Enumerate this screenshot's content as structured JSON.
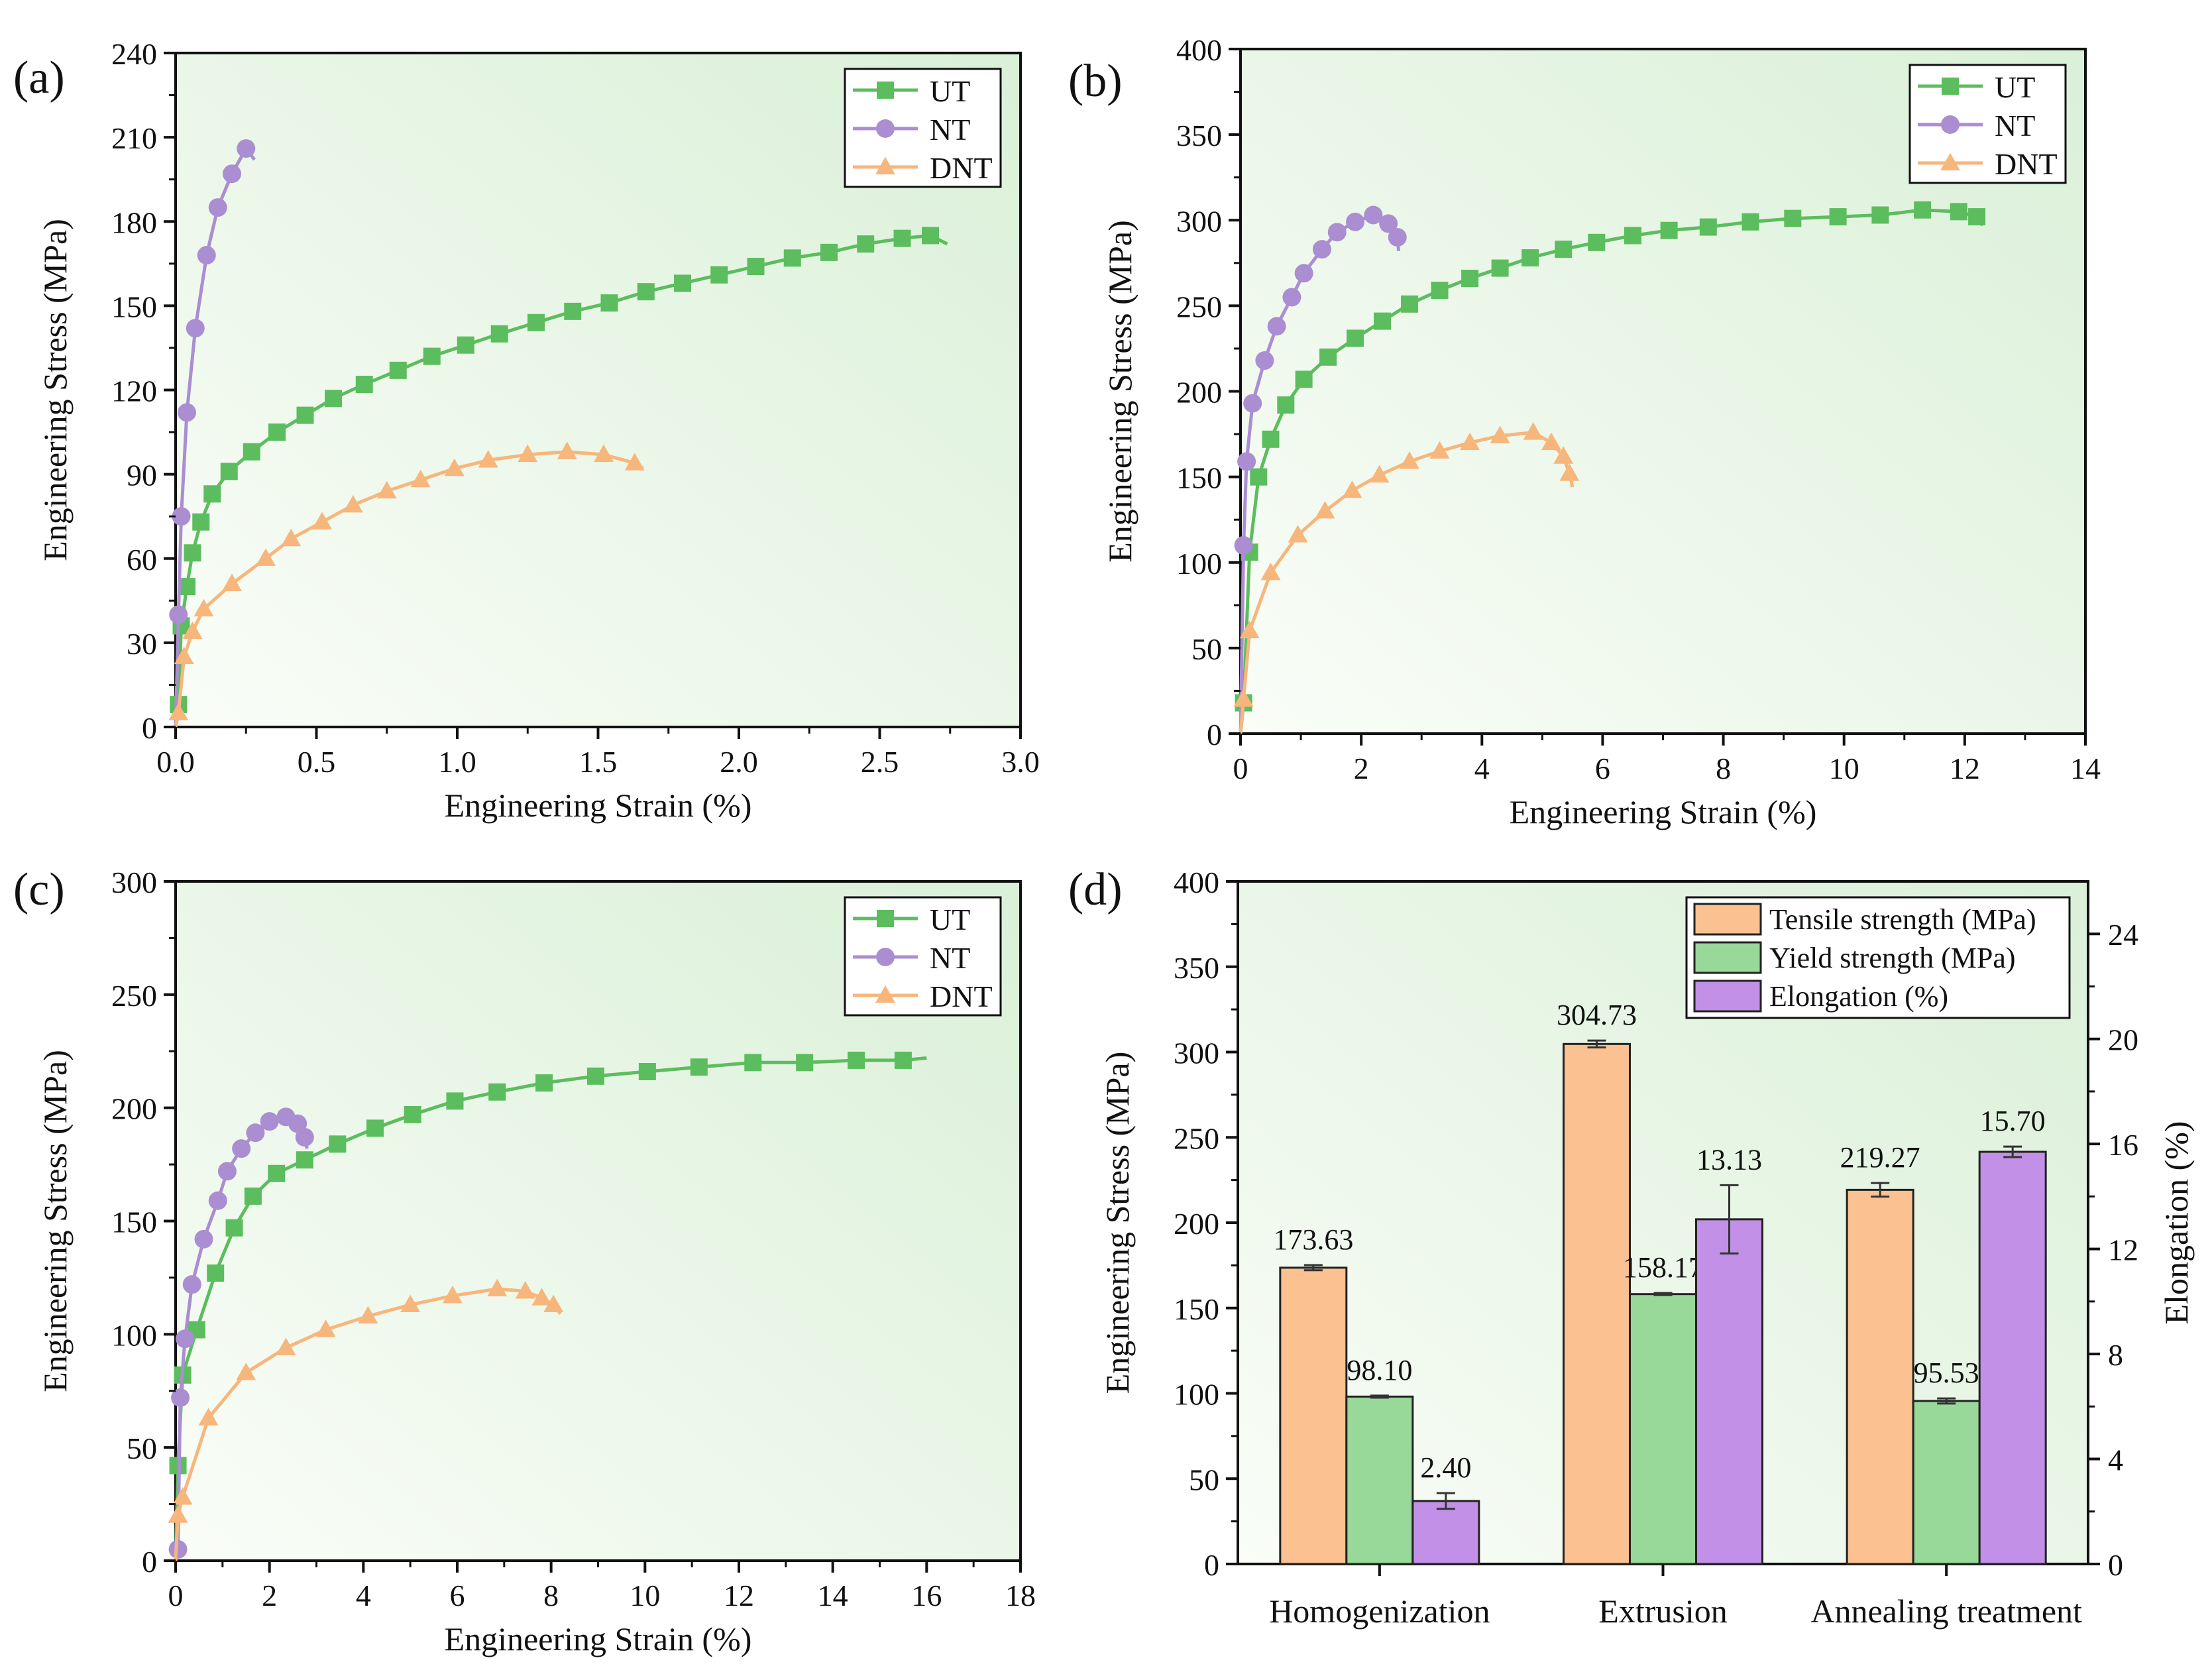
{
  "colors": {
    "UT": "#5cbd5e",
    "NT": "#aa8ed1",
    "DNT": "#f7b67b",
    "tensile": "#fbc190",
    "yield": "#98d898",
    "elongation": "#c290e6",
    "bg_light": "#fafdf8",
    "bg_dark": "#daf0d8"
  },
  "chart_data": [
    {
      "panel_label": "(a)",
      "type": "line",
      "xlabel": "Engineering Strain (%)",
      "ylabel": "Engineering Stress (MPa)",
      "xlim": [
        0,
        3.0
      ],
      "ylim": [
        0,
        240
      ],
      "xticks": [
        "0.0",
        "0.5",
        "1.0",
        "1.5",
        "2.0",
        "2.5",
        "3.0"
      ],
      "yticks": [
        "0",
        "30",
        "60",
        "90",
        "120",
        "150",
        "180",
        "210",
        "240"
      ],
      "legend": "top-right",
      "series": [
        {
          "name": "UT",
          "marker": "square",
          "x": [
            0,
            0.01,
            0.02,
            0.04,
            0.06,
            0.09,
            0.13,
            0.19,
            0.27,
            0.36,
            0.46,
            0.56,
            0.67,
            0.79,
            0.91,
            1.03,
            1.15,
            1.28,
            1.41,
            1.54,
            1.67,
            1.8,
            1.93,
            2.06,
            2.19,
            2.32,
            2.45,
            2.58,
            2.68,
            2.74
          ],
          "y": [
            0,
            8,
            36,
            50,
            62,
            73,
            83,
            91,
            98,
            105,
            111,
            117,
            122,
            127,
            132,
            136,
            140,
            144,
            148,
            151,
            155,
            158,
            161,
            164,
            167,
            169,
            172,
            174,
            175,
            172
          ]
        },
        {
          "name": "NT",
          "marker": "circle",
          "x": [
            0,
            0.01,
            0.02,
            0.04,
            0.07,
            0.11,
            0.15,
            0.2,
            0.25,
            0.28
          ],
          "y": [
            0,
            40,
            75,
            112,
            142,
            168,
            185,
            197,
            206,
            202
          ]
        },
        {
          "name": "DNT",
          "marker": "triangle",
          "x": [
            0,
            0.01,
            0.03,
            0.06,
            0.1,
            0.2,
            0.32,
            0.41,
            0.52,
            0.63,
            0.75,
            0.87,
            0.99,
            1.11,
            1.25,
            1.39,
            1.52,
            1.63,
            1.66
          ],
          "y": [
            0,
            5,
            25,
            34,
            42,
            51,
            60,
            67,
            73,
            79,
            84,
            88,
            92,
            95,
            97,
            98,
            97,
            94,
            92
          ]
        }
      ]
    },
    {
      "panel_label": "(b)",
      "type": "line",
      "xlabel": "Engineering Strain (%)",
      "ylabel": "Engineering Stress (MPa)",
      "xlim": [
        0,
        14
      ],
      "ylim": [
        0,
        400
      ],
      "xticks": [
        "0",
        "2",
        "4",
        "6",
        "8",
        "10",
        "12",
        "14"
      ],
      "yticks": [
        "0",
        "50",
        "100",
        "150",
        "200",
        "250",
        "300",
        "350",
        "400"
      ],
      "legend": "top-right",
      "series": [
        {
          "name": "UT",
          "marker": "square",
          "x": [
            0,
            0.05,
            0.15,
            0.3,
            0.5,
            0.75,
            1.05,
            1.45,
            1.9,
            2.35,
            2.8,
            3.3,
            3.8,
            4.3,
            4.8,
            5.35,
            5.9,
            6.5,
            7.1,
            7.75,
            8.45,
            9.15,
            9.9,
            10.6,
            11.3,
            11.9,
            12.2,
            12.3
          ],
          "y": [
            0,
            18,
            106,
            150,
            172,
            192,
            207,
            220,
            231,
            241,
            251,
            259,
            266,
            272,
            278,
            283,
            287,
            291,
            294,
            296,
            299,
            301,
            302,
            303,
            306,
            305,
            302,
            297
          ]
        },
        {
          "name": "NT",
          "marker": "circle",
          "x": [
            0,
            0.05,
            0.1,
            0.2,
            0.4,
            0.6,
            0.85,
            1.05,
            1.35,
            1.6,
            1.9,
            2.2,
            2.45,
            2.6,
            2.62
          ],
          "y": [
            0,
            110,
            159,
            193,
            218,
            238,
            255,
            269,
            283,
            293,
            299,
            303,
            298,
            290,
            282
          ]
        },
        {
          "name": "DNT",
          "marker": "triangle",
          "x": [
            0,
            0.05,
            0.15,
            0.5,
            0.95,
            1.4,
            1.85,
            2.3,
            2.8,
            3.3,
            3.8,
            4.3,
            4.85,
            5.15,
            5.35,
            5.45,
            5.5
          ],
          "y": [
            0,
            20,
            60,
            94,
            116,
            130,
            142,
            151,
            159,
            165,
            170,
            174,
            176,
            170,
            162,
            152,
            144
          ]
        }
      ]
    },
    {
      "panel_label": "(c)",
      "type": "line",
      "xlabel": "Engineering Strain (%)",
      "ylabel": "Engineering Stress (MPa)",
      "xlim": [
        0,
        18
      ],
      "ylim": [
        0,
        300
      ],
      "xticks": [
        "0",
        "2",
        "4",
        "6",
        "8",
        "10",
        "12",
        "14",
        "16",
        "18"
      ],
      "yticks": [
        "0",
        "50",
        "100",
        "150",
        "200",
        "250",
        "300"
      ],
      "legend": "top-right",
      "series": [
        {
          "name": "UT",
          "marker": "square",
          "x": [
            0,
            0.05,
            0.15,
            0.45,
            0.85,
            1.25,
            1.65,
            2.15,
            2.75,
            3.45,
            4.25,
            5.05,
            5.95,
            6.85,
            7.85,
            8.95,
            10.05,
            11.15,
            12.3,
            13.4,
            14.5,
            15.5,
            16.0
          ],
          "y": [
            0,
            42,
            82,
            102,
            127,
            147,
            161,
            171,
            177,
            184,
            191,
            197,
            203,
            207,
            211,
            214,
            216,
            218,
            220,
            220,
            221,
            221,
            222
          ]
        },
        {
          "name": "NT",
          "marker": "circle",
          "x": [
            0,
            0.05,
            0.1,
            0.2,
            0.35,
            0.6,
            0.9,
            1.1,
            1.4,
            1.7,
            2.0,
            2.35,
            2.6,
            2.75,
            2.8
          ],
          "y": [
            0,
            5,
            72,
            98,
            122,
            142,
            159,
            172,
            182,
            189,
            194,
            196,
            193,
            187,
            182
          ]
        },
        {
          "name": "DNT",
          "marker": "triangle",
          "x": [
            0,
            0.05,
            0.15,
            0.7,
            1.5,
            2.35,
            3.2,
            4.1,
            5.0,
            5.9,
            6.85,
            7.45,
            7.8,
            8.05,
            8.2
          ],
          "y": [
            0,
            20,
            28,
            63,
            83,
            94,
            102,
            108,
            113,
            117,
            120,
            119,
            116,
            113,
            109
          ]
        }
      ]
    },
    {
      "panel_label": "(d)",
      "type": "bar",
      "categories": [
        "Homogenization",
        "Extrusion",
        "Annealing treatment"
      ],
      "ylabel": "Engineering Stress (MPa)",
      "ylabel_right": "Elongation (%)",
      "ylim": [
        0,
        400
      ],
      "ylim_right": [
        0,
        26
      ],
      "yticks": [
        "0",
        "50",
        "100",
        "150",
        "200",
        "250",
        "300",
        "350",
        "400"
      ],
      "yticks_right": [
        "0",
        "4",
        "8",
        "12",
        "16",
        "20",
        "24"
      ],
      "legend": "top-right",
      "series": [
        {
          "name": "Tensile strength (MPa)",
          "axis": "left",
          "values": [
            173.63,
            304.73,
            219.27
          ],
          "errors": [
            1.5,
            2.0,
            4.0
          ],
          "labels": [
            "173.63",
            "304.73",
            "219.27"
          ]
        },
        {
          "name": "Yield strength (MPa)",
          "axis": "left",
          "values": [
            98.1,
            158.17,
            95.53
          ],
          "errors": [
            0.6,
            0.6,
            1.5
          ],
          "labels": [
            "98.10",
            "158.17",
            "95.53"
          ]
        },
        {
          "name": "Elongation (%)",
          "axis": "right",
          "values": [
            2.4,
            13.13,
            15.7
          ],
          "errors": [
            0.3,
            1.3,
            0.2
          ],
          "labels": [
            "2.40",
            "13.13",
            "15.70"
          ]
        }
      ]
    }
  ]
}
